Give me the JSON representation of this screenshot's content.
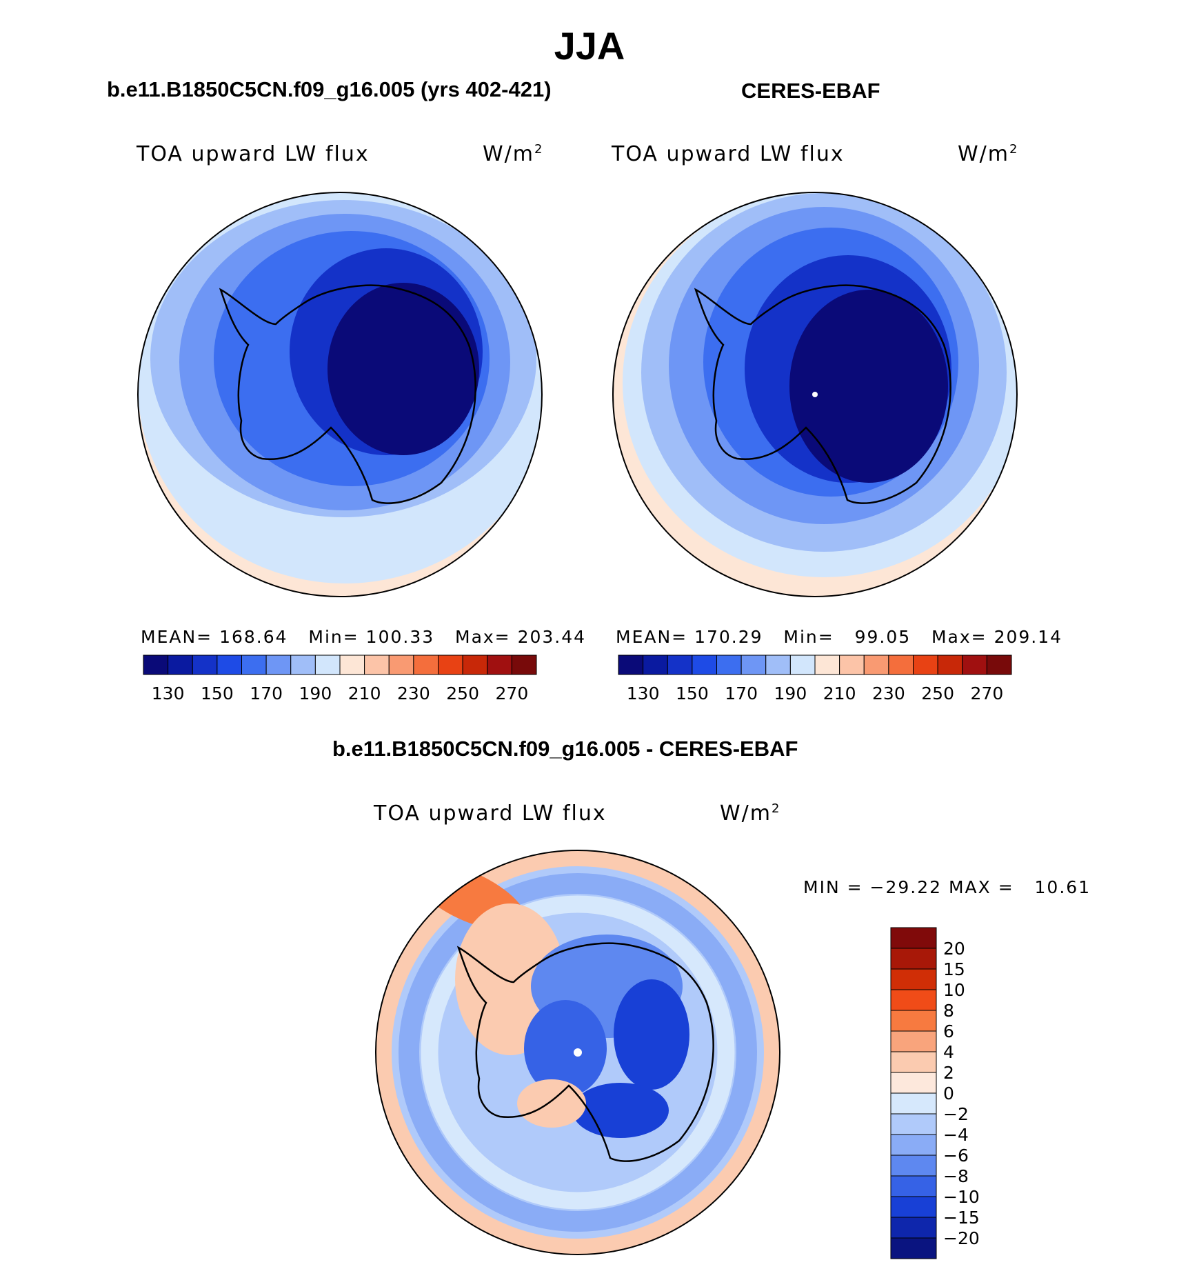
{
  "title": "JJA",
  "units_base": "W/m",
  "units_exp": "2",
  "panels": [
    {
      "header": "b.e11.B1850C5CN.f09_g16.005 (yrs 402-421)",
      "variable": "TOA upward LW flux",
      "stats": {
        "mean": "168.64",
        "min": "100.33",
        "max": "203.44",
        "mean_label": "MEAN=",
        "min_label": "Min=",
        "max_label": "Max="
      }
    },
    {
      "header": "CERES-EBAF",
      "variable": "TOA upward LW flux",
      "stats": {
        "mean": "170.29",
        "min": "99.05",
        "max": "209.14",
        "mean_label": "MEAN=",
        "min_label": "Min=",
        "max_label": "Max="
      }
    },
    {
      "header": "b.e11.B1850C5CN.f09_g16.005 - CERES-EBAF",
      "variable": "TOA upward LW flux",
      "stats": {
        "min_label": "MIN =",
        "min": "−29.22",
        "max_label": "MAX =",
        "max": "10.61"
      }
    }
  ],
  "colorbar_abs": {
    "tick_labels": [
      "130",
      "150",
      "170",
      "190",
      "210",
      "230",
      "250",
      "270"
    ],
    "colors": [
      "#0a0a78",
      "#0a1aa0",
      "#1432c8",
      "#1e4be6",
      "#3c6ef0",
      "#6e96f5",
      "#a0bef8",
      "#d2e6fc",
      "#fde6d6",
      "#fcc4a8",
      "#f99a72",
      "#f46e3c",
      "#e84214",
      "#c82808",
      "#a01010",
      "#780a0a"
    ]
  },
  "colorbar_diff": {
    "tick_labels": [
      "20",
      "15",
      "10",
      "8",
      "6",
      "4",
      "2",
      "0",
      "−2",
      "−4",
      "−6",
      "−8",
      "−10",
      "−15",
      "−20"
    ],
    "colors": [
      "#800a0a",
      "#a81808",
      "#d02e06",
      "#f04c18",
      "#f77a40",
      "#f9a47c",
      "#fbcbb0",
      "#fde8dc",
      "#d6e8fc",
      "#b0cafa",
      "#8aacf6",
      "#5e88f0",
      "#3662e6",
      "#1840d6",
      "#0e26ac",
      "#0a1480"
    ]
  },
  "chart_data": {
    "type": "heatmap",
    "title": "JJA",
    "maps": [
      {
        "name": "b.e11.B1850C5CN.f09_g16.005 (yrs 402-421)",
        "variable": "TOA upward LW flux",
        "units": "W/m2",
        "mean": 168.64,
        "min": 100.33,
        "max": 203.44,
        "levels": [
          130,
          140,
          150,
          160,
          170,
          180,
          190,
          200,
          210,
          220,
          230,
          240,
          250,
          260,
          270
        ]
      },
      {
        "name": "CERES-EBAF",
        "variable": "TOA upward LW flux",
        "units": "W/m2",
        "mean": 170.29,
        "min": 99.05,
        "max": 209.14,
        "levels": [
          130,
          140,
          150,
          160,
          170,
          180,
          190,
          200,
          210,
          220,
          230,
          240,
          250,
          260,
          270
        ]
      },
      {
        "name": "b.e11.B1850C5CN.f09_g16.005 - CERES-EBAF",
        "variable": "TOA upward LW flux",
        "units": "W/m2",
        "min": -29.22,
        "max": 10.61,
        "levels": [
          -20,
          -15,
          -10,
          -8,
          -6,
          -4,
          -2,
          0,
          2,
          4,
          6,
          8,
          10,
          15,
          20
        ]
      }
    ]
  }
}
